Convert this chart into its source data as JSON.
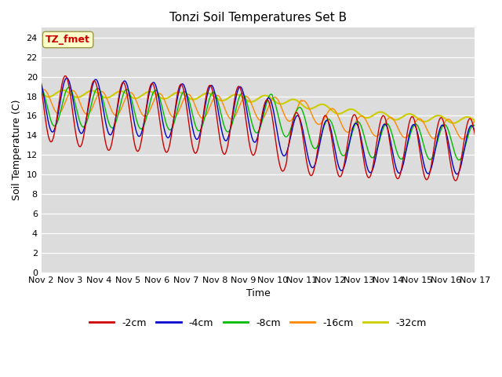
{
  "title": "Tonzi Soil Temperatures Set B",
  "xlabel": "Time",
  "ylabel": "Soil Temperature (C)",
  "annotation": "TZ_fmet",
  "ylim": [
    0,
    25
  ],
  "yticks": [
    0,
    2,
    4,
    6,
    8,
    10,
    12,
    14,
    16,
    18,
    20,
    22,
    24
  ],
  "xtick_labels": [
    "Nov 2",
    "Nov 3",
    "Nov 4",
    "Nov 5",
    "Nov 6",
    "Nov 7",
    "Nov 8",
    "Nov 9",
    "Nov 10",
    "Nov 11",
    "Nov 12",
    "Nov 13",
    "Nov 14",
    "Nov 15",
    "Nov 16",
    "Nov 17"
  ],
  "bg_color": "#dcdcdc",
  "fig_color": "#ffffff",
  "series": {
    "-2cm": {
      "color": "#cc0000",
      "lw": 1.0
    },
    "-4cm": {
      "color": "#0000cc",
      "lw": 1.0
    },
    "-8cm": {
      "color": "#00bb00",
      "lw": 1.0
    },
    "-16cm": {
      "color": "#ff8800",
      "lw": 1.0
    },
    "-32cm": {
      "color": "#cccc00",
      "lw": 1.5
    }
  },
  "legend_colors": {
    "-2cm": "#cc0000",
    "-4cm": "#0000cc",
    "-8cm": "#00bb00",
    "-16cm": "#ff8800",
    "-32cm": "#cccc00"
  }
}
